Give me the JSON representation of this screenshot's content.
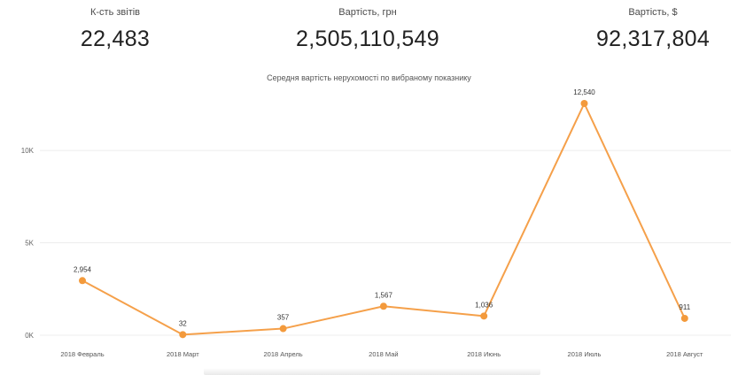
{
  "kpis": [
    {
      "label": "К-сть звітів",
      "value": "22,483"
    },
    {
      "label": "Вартість, грн",
      "value": "2,505,110,549"
    },
    {
      "label": "Вартість, $",
      "value": "92,317,804"
    }
  ],
  "chart_data": {
    "type": "line",
    "title": "Середня вартість нерухомості по вибраному показнику",
    "xlabel": "",
    "ylabel": "",
    "categories": [
      "2018 Февраль",
      "2018 Март",
      "2018 Апрель",
      "2018 Май",
      "2018 Июнь",
      "2018 Июль",
      "2018 Август"
    ],
    "series": [
      {
        "values": [
          2954,
          32,
          357,
          1567,
          1036,
          12540,
          911
        ],
        "labels": [
          "2,954",
          "32",
          "357",
          "1,567",
          "1,036",
          "12,540",
          "911"
        ]
      }
    ],
    "ylim": [
      0,
      12540
    ],
    "yticks": [
      0,
      5000,
      10000
    ],
    "ytick_labels": [
      "0K",
      "5K",
      "10K"
    ],
    "grid": true,
    "colors": {
      "line": "#f5a04a",
      "marker": "#f39a3c",
      "grid": "#ececec"
    }
  }
}
